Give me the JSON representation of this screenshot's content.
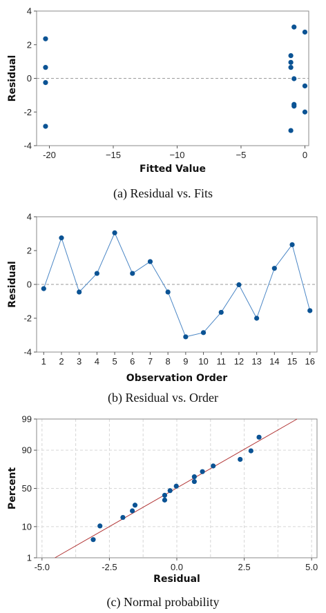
{
  "chart_data": [
    {
      "type": "scatter",
      "xlabel": "Fitted Value",
      "ylabel": "Residual",
      "xlim": [
        -21,
        0.3
      ],
      "ylim": [
        -4,
        4
      ],
      "xticks": [
        -20,
        -15,
        -10,
        -5,
        0
      ],
      "yticks": [
        -4,
        -2,
        0,
        2,
        4
      ],
      "xtick_labels": [
        "-20",
        "−15",
        "−10",
        "−5",
        "0"
      ],
      "ytick_labels": [
        "-4",
        "-2",
        "0",
        "2",
        "4"
      ],
      "reference_line_y": 0,
      "caption": "(a)  Residual  vs.  Fits",
      "points": [
        {
          "x": -20.3,
          "y": 2.35
        },
        {
          "x": -20.3,
          "y": 0.65
        },
        {
          "x": -20.3,
          "y": -0.25
        },
        {
          "x": -20.3,
          "y": -2.85
        },
        {
          "x": -1.1,
          "y": 1.35
        },
        {
          "x": -1.1,
          "y": 0.95
        },
        {
          "x": -1.1,
          "y": 0.65
        },
        {
          "x": -1.1,
          "y": -3.1
        },
        {
          "x": -0.85,
          "y": 3.05
        },
        {
          "x": -0.85,
          "y": -0.02
        },
        {
          "x": -0.85,
          "y": -1.55
        },
        {
          "x": -0.85,
          "y": -1.65
        },
        {
          "x": 0.0,
          "y": 2.75
        },
        {
          "x": 0.0,
          "y": -0.45
        },
        {
          "x": 0.0,
          "y": -2.0
        }
      ]
    },
    {
      "type": "line",
      "xlabel": "Observation Order",
      "ylabel": "Residual",
      "xlim": [
        0.6,
        16.4
      ],
      "ylim": [
        -4,
        4
      ],
      "x": [
        1,
        2,
        3,
        4,
        5,
        6,
        7,
        8,
        9,
        10,
        11,
        12,
        13,
        14,
        15,
        16
      ],
      "xtick_labels": [
        "1",
        "2",
        "3",
        "4",
        "5",
        "6",
        "7",
        "8",
        "9",
        "10",
        "11",
        "12",
        "13",
        "14",
        "15",
        "16"
      ],
      "yticks": [
        -4,
        -2,
        0,
        2,
        4
      ],
      "ytick_labels": [
        "-4",
        "-2",
        "0",
        "2",
        "4"
      ],
      "values": [
        -0.25,
        2.75,
        -0.45,
        0.65,
        3.05,
        0.65,
        1.35,
        -0.45,
        -3.1,
        -2.85,
        -1.65,
        -0.02,
        -2.0,
        0.95,
        2.35,
        -1.55
      ],
      "reference_line_y": 0,
      "caption": "(b)  Residual  vs.  Order"
    },
    {
      "type": "scatter",
      "xlabel": "Residual",
      "ylabel": "Percent",
      "xlim": [
        -5.2,
        5.2
      ],
      "y_scale": "normal probability",
      "ylim": [
        1,
        99
      ],
      "xticks": [
        -5.0,
        -2.5,
        0.0,
        2.5,
        5.0
      ],
      "xtick_labels": [
        "-5.0",
        "-2.5",
        "0.0",
        "2.5",
        "5.0"
      ],
      "yticks": [
        1,
        10,
        50,
        90,
        99
      ],
      "ytick_labels": [
        "1",
        "10",
        "50",
        "90",
        "99"
      ],
      "grid": true,
      "fit_line": {
        "type": "normal",
        "mean": -0.03,
        "sd": 1.93
      },
      "caption": "(c)  Normal  probability",
      "points": [
        {
          "x": -3.1,
          "y": 4.3
        },
        {
          "x": -2.85,
          "y": 10.4
        },
        {
          "x": -2.0,
          "y": 16.5
        },
        {
          "x": -1.65,
          "y": 22.6
        },
        {
          "x": -1.55,
          "y": 28.7
        },
        {
          "x": -0.45,
          "y": 34.8
        },
        {
          "x": -0.45,
          "y": 40.9
        },
        {
          "x": -0.25,
          "y": 47.0
        },
        {
          "x": -0.02,
          "y": 53.0
        },
        {
          "x": 0.65,
          "y": 59.1
        },
        {
          "x": 0.65,
          "y": 65.2
        },
        {
          "x": 0.95,
          "y": 71.3
        },
        {
          "x": 1.35,
          "y": 77.4
        },
        {
          "x": 2.35,
          "y": 83.5
        },
        {
          "x": 2.75,
          "y": 89.6
        },
        {
          "x": 3.05,
          "y": 95.7
        }
      ]
    }
  ]
}
